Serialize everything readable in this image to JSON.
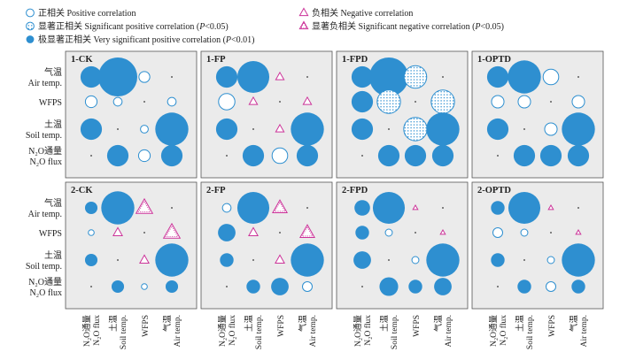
{
  "legend": [
    {
      "key": "pos",
      "text": "正相关 Positive correlation"
    },
    {
      "key": "neg",
      "text": "负相关 Negative correlation"
    },
    {
      "key": "sigpos",
      "text": "显著正相关 Significant positive correlation (P<0.05)"
    },
    {
      "key": "signeg",
      "text": "显著负相关 Significant negative correlation (P<0.05)"
    },
    {
      "key": "vsigpos",
      "text": "极显著正相关 Very significant positive correlation (P<0.01)"
    }
  ],
  "chart_data": {
    "type": "heatmap",
    "rows": [
      {
        "cn": "气温",
        "en": "Air temp."
      },
      {
        "cn": "",
        "en": "WFPS"
      },
      {
        "cn": "土温",
        "en": "Soil temp."
      },
      {
        "cn": "N₂O通量",
        "en": "N₂O flux"
      }
    ],
    "columns": [
      {
        "cn": "N₂O通量",
        "en": "N₂O flux"
      },
      {
        "cn": "土温",
        "en": "Soil temp."
      },
      {
        "cn": "",
        "en": "WFPS"
      },
      {
        "cn": "气温",
        "en": "Air temp."
      }
    ],
    "size_encoding": "circle/triangle size proportional to |r|",
    "colors": {
      "very_significant": "#2E8FD0",
      "significant_positive": "#2E8FD0",
      "positive": "#2E8FD0",
      "negative": "#CC3399"
    },
    "panels": [
      {
        "title": "1-CK",
        "cells": [
          [
            "vsigpos",
            0.55
          ],
          [
            "vsigpos",
            1.0
          ],
          [
            "pos",
            0.28
          ],
          [
            "dot",
            0.0
          ],
          [
            "pos",
            0.3
          ],
          [
            "pos",
            0.22
          ],
          [
            "dot",
            0.0
          ],
          [
            "pos",
            0.22
          ],
          [
            "vsigpos",
            0.55
          ],
          [
            "dot",
            0.0
          ],
          [
            "pos",
            0.2
          ],
          [
            "vsigpos",
            0.85
          ],
          [
            "dot",
            0.0
          ],
          [
            "vsigpos",
            0.55
          ],
          [
            "pos",
            0.3
          ],
          [
            "vsigpos",
            0.55
          ]
        ]
      },
      {
        "title": "1-FP",
        "cells": [
          [
            "vsigpos",
            0.55
          ],
          [
            "vsigpos",
            0.82
          ],
          [
            "neg",
            0.2
          ],
          [
            "dot",
            0.0
          ],
          [
            "pos",
            0.42
          ],
          [
            "neg",
            0.2
          ],
          [
            "dot",
            0.0
          ],
          [
            "neg",
            0.2
          ],
          [
            "vsigpos",
            0.55
          ],
          [
            "dot",
            0.0
          ],
          [
            "neg",
            0.2
          ],
          [
            "vsigpos",
            0.85
          ],
          [
            "dot",
            0.0
          ],
          [
            "vsigpos",
            0.55
          ],
          [
            "pos",
            0.4
          ],
          [
            "vsigpos",
            0.55
          ]
        ]
      },
      {
        "title": "1-FPD",
        "cells": [
          [
            "vsigpos",
            0.55
          ],
          [
            "vsigpos",
            1.0
          ],
          [
            "sigpos",
            0.58
          ],
          [
            "dot",
            0.0
          ],
          [
            "vsigpos",
            0.55
          ],
          [
            "sigpos",
            0.6
          ],
          [
            "dot",
            0.0
          ],
          [
            "sigpos",
            0.6
          ],
          [
            "vsigpos",
            0.55
          ],
          [
            "dot",
            0.0
          ],
          [
            "sigpos",
            0.6
          ],
          [
            "vsigpos",
            0.85
          ],
          [
            "dot",
            0.0
          ],
          [
            "vsigpos",
            0.55
          ],
          [
            "vsigpos",
            0.55
          ],
          [
            "vsigpos",
            0.55
          ]
        ]
      },
      {
        "title": "1-OPTD",
        "cells": [
          [
            "vsigpos",
            0.55
          ],
          [
            "vsigpos",
            0.85
          ],
          [
            "pos",
            0.4
          ],
          [
            "dot",
            0.0
          ],
          [
            "pos",
            0.32
          ],
          [
            "pos",
            0.32
          ],
          [
            "dot",
            0.0
          ],
          [
            "pos",
            0.32
          ],
          [
            "vsigpos",
            0.55
          ],
          [
            "dot",
            0.0
          ],
          [
            "pos",
            0.32
          ],
          [
            "vsigpos",
            0.85
          ],
          [
            "dot",
            0.0
          ],
          [
            "vsigpos",
            0.55
          ],
          [
            "vsigpos",
            0.55
          ],
          [
            "vsigpos",
            0.55
          ]
        ]
      },
      {
        "title": "2-CK",
        "cells": [
          [
            "vsigpos",
            0.32
          ],
          [
            "vsigpos",
            0.85
          ],
          [
            "signeg",
            0.4
          ],
          [
            "dot",
            0.0
          ],
          [
            "pos",
            0.15
          ],
          [
            "neg",
            0.22
          ],
          [
            "dot",
            0.0
          ],
          [
            "signeg",
            0.4
          ],
          [
            "vsigpos",
            0.32
          ],
          [
            "dot",
            0.0
          ],
          [
            "neg",
            0.22
          ],
          [
            "vsigpos",
            0.85
          ],
          [
            "dot",
            0.0
          ],
          [
            "vsigpos",
            0.32
          ],
          [
            "pos",
            0.15
          ],
          [
            "vsigpos",
            0.32
          ]
        ]
      },
      {
        "title": "2-FP",
        "cells": [
          [
            "pos",
            0.22
          ],
          [
            "vsigpos",
            0.82
          ],
          [
            "signeg",
            0.35
          ],
          [
            "dot",
            0.0
          ],
          [
            "vsigpos",
            0.45
          ],
          [
            "neg",
            0.22
          ],
          [
            "dot",
            0.0
          ],
          [
            "signeg",
            0.35
          ],
          [
            "vsigpos",
            0.35
          ],
          [
            "dot",
            0.0
          ],
          [
            "neg",
            0.22
          ],
          [
            "vsigpos",
            0.85
          ],
          [
            "dot",
            0.0
          ],
          [
            "vsigpos",
            0.35
          ],
          [
            "vsigpos",
            0.45
          ],
          [
            "pos",
            0.25
          ]
        ]
      },
      {
        "title": "2-FPD",
        "cells": [
          [
            "vsigpos",
            0.4
          ],
          [
            "vsigpos",
            0.82
          ],
          [
            "neg",
            0.12
          ],
          [
            "dot",
            0.0
          ],
          [
            "vsigpos",
            0.35
          ],
          [
            "pos",
            0.18
          ],
          [
            "dot",
            0.0
          ],
          [
            "neg",
            0.12
          ],
          [
            "vsigpos",
            0.45
          ],
          [
            "dot",
            0.0
          ],
          [
            "pos",
            0.18
          ],
          [
            "vsigpos",
            0.85
          ],
          [
            "dot",
            0.0
          ],
          [
            "vsigpos",
            0.48
          ],
          [
            "vsigpos",
            0.35
          ],
          [
            "vsigpos",
            0.45
          ]
        ]
      },
      {
        "title": "2-OPTD",
        "cells": [
          [
            "vsigpos",
            0.35
          ],
          [
            "vsigpos",
            0.82
          ],
          [
            "neg",
            0.12
          ],
          [
            "dot",
            0.0
          ],
          [
            "pos",
            0.25
          ],
          [
            "pos",
            0.18
          ],
          [
            "dot",
            0.0
          ],
          [
            "neg",
            0.12
          ],
          [
            "vsigpos",
            0.35
          ],
          [
            "dot",
            0.0
          ],
          [
            "pos",
            0.18
          ],
          [
            "vsigpos",
            0.85
          ],
          [
            "dot",
            0.0
          ],
          [
            "vsigpos",
            0.35
          ],
          [
            "pos",
            0.25
          ],
          [
            "vsigpos",
            0.35
          ]
        ]
      }
    ]
  }
}
